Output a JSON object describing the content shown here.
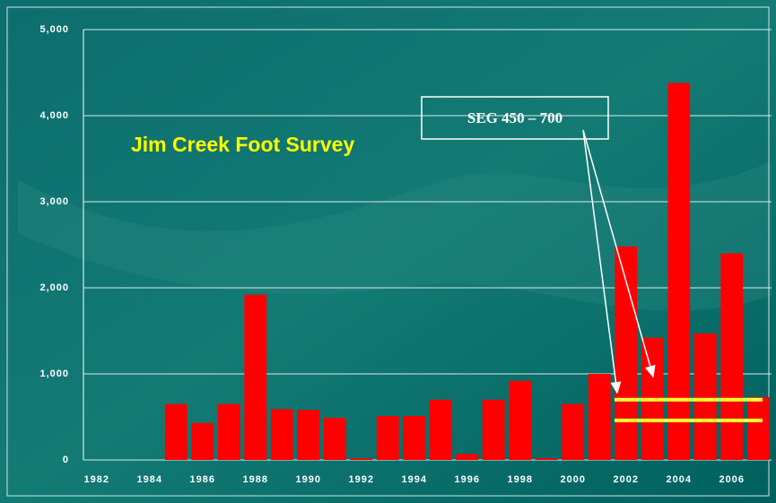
{
  "chart_data": {
    "type": "bar",
    "title": "Jim Creek Foot Survey",
    "annotation": "SEG 450 – 700",
    "categories": [
      "1982",
      null,
      "1984",
      null,
      "1986",
      null,
      "1988",
      null,
      "1990",
      null,
      "1992",
      null,
      "1994",
      null,
      "1996",
      null,
      "1998",
      null,
      "2000",
      null,
      "2002",
      null,
      "2004",
      null,
      "2006",
      null
    ],
    "values": [
      null,
      null,
      null,
      650,
      430,
      650,
      1920,
      590,
      580,
      490,
      20,
      510,
      510,
      700,
      70,
      700,
      920,
      20,
      650,
      1000,
      2480,
      1420,
      4380,
      1470,
      2400,
      730
    ],
    "color": "#ff0000",
    "ylim": [
      0,
      5000
    ],
    "yticks": [
      0,
      {
        "value": 1000,
        "label": "1,000"
      },
      {
        "value": 2000,
        "label": "2,000"
      },
      {
        "value": 3000,
        "label": "3,000"
      },
      {
        "value": 4000,
        "label": "4,000"
      },
      {
        "value": 5000,
        "label": "5,000"
      }
    ],
    "grid": true,
    "reference_lines": [
      460,
      700
    ],
    "reference_color": "#ffff33"
  }
}
